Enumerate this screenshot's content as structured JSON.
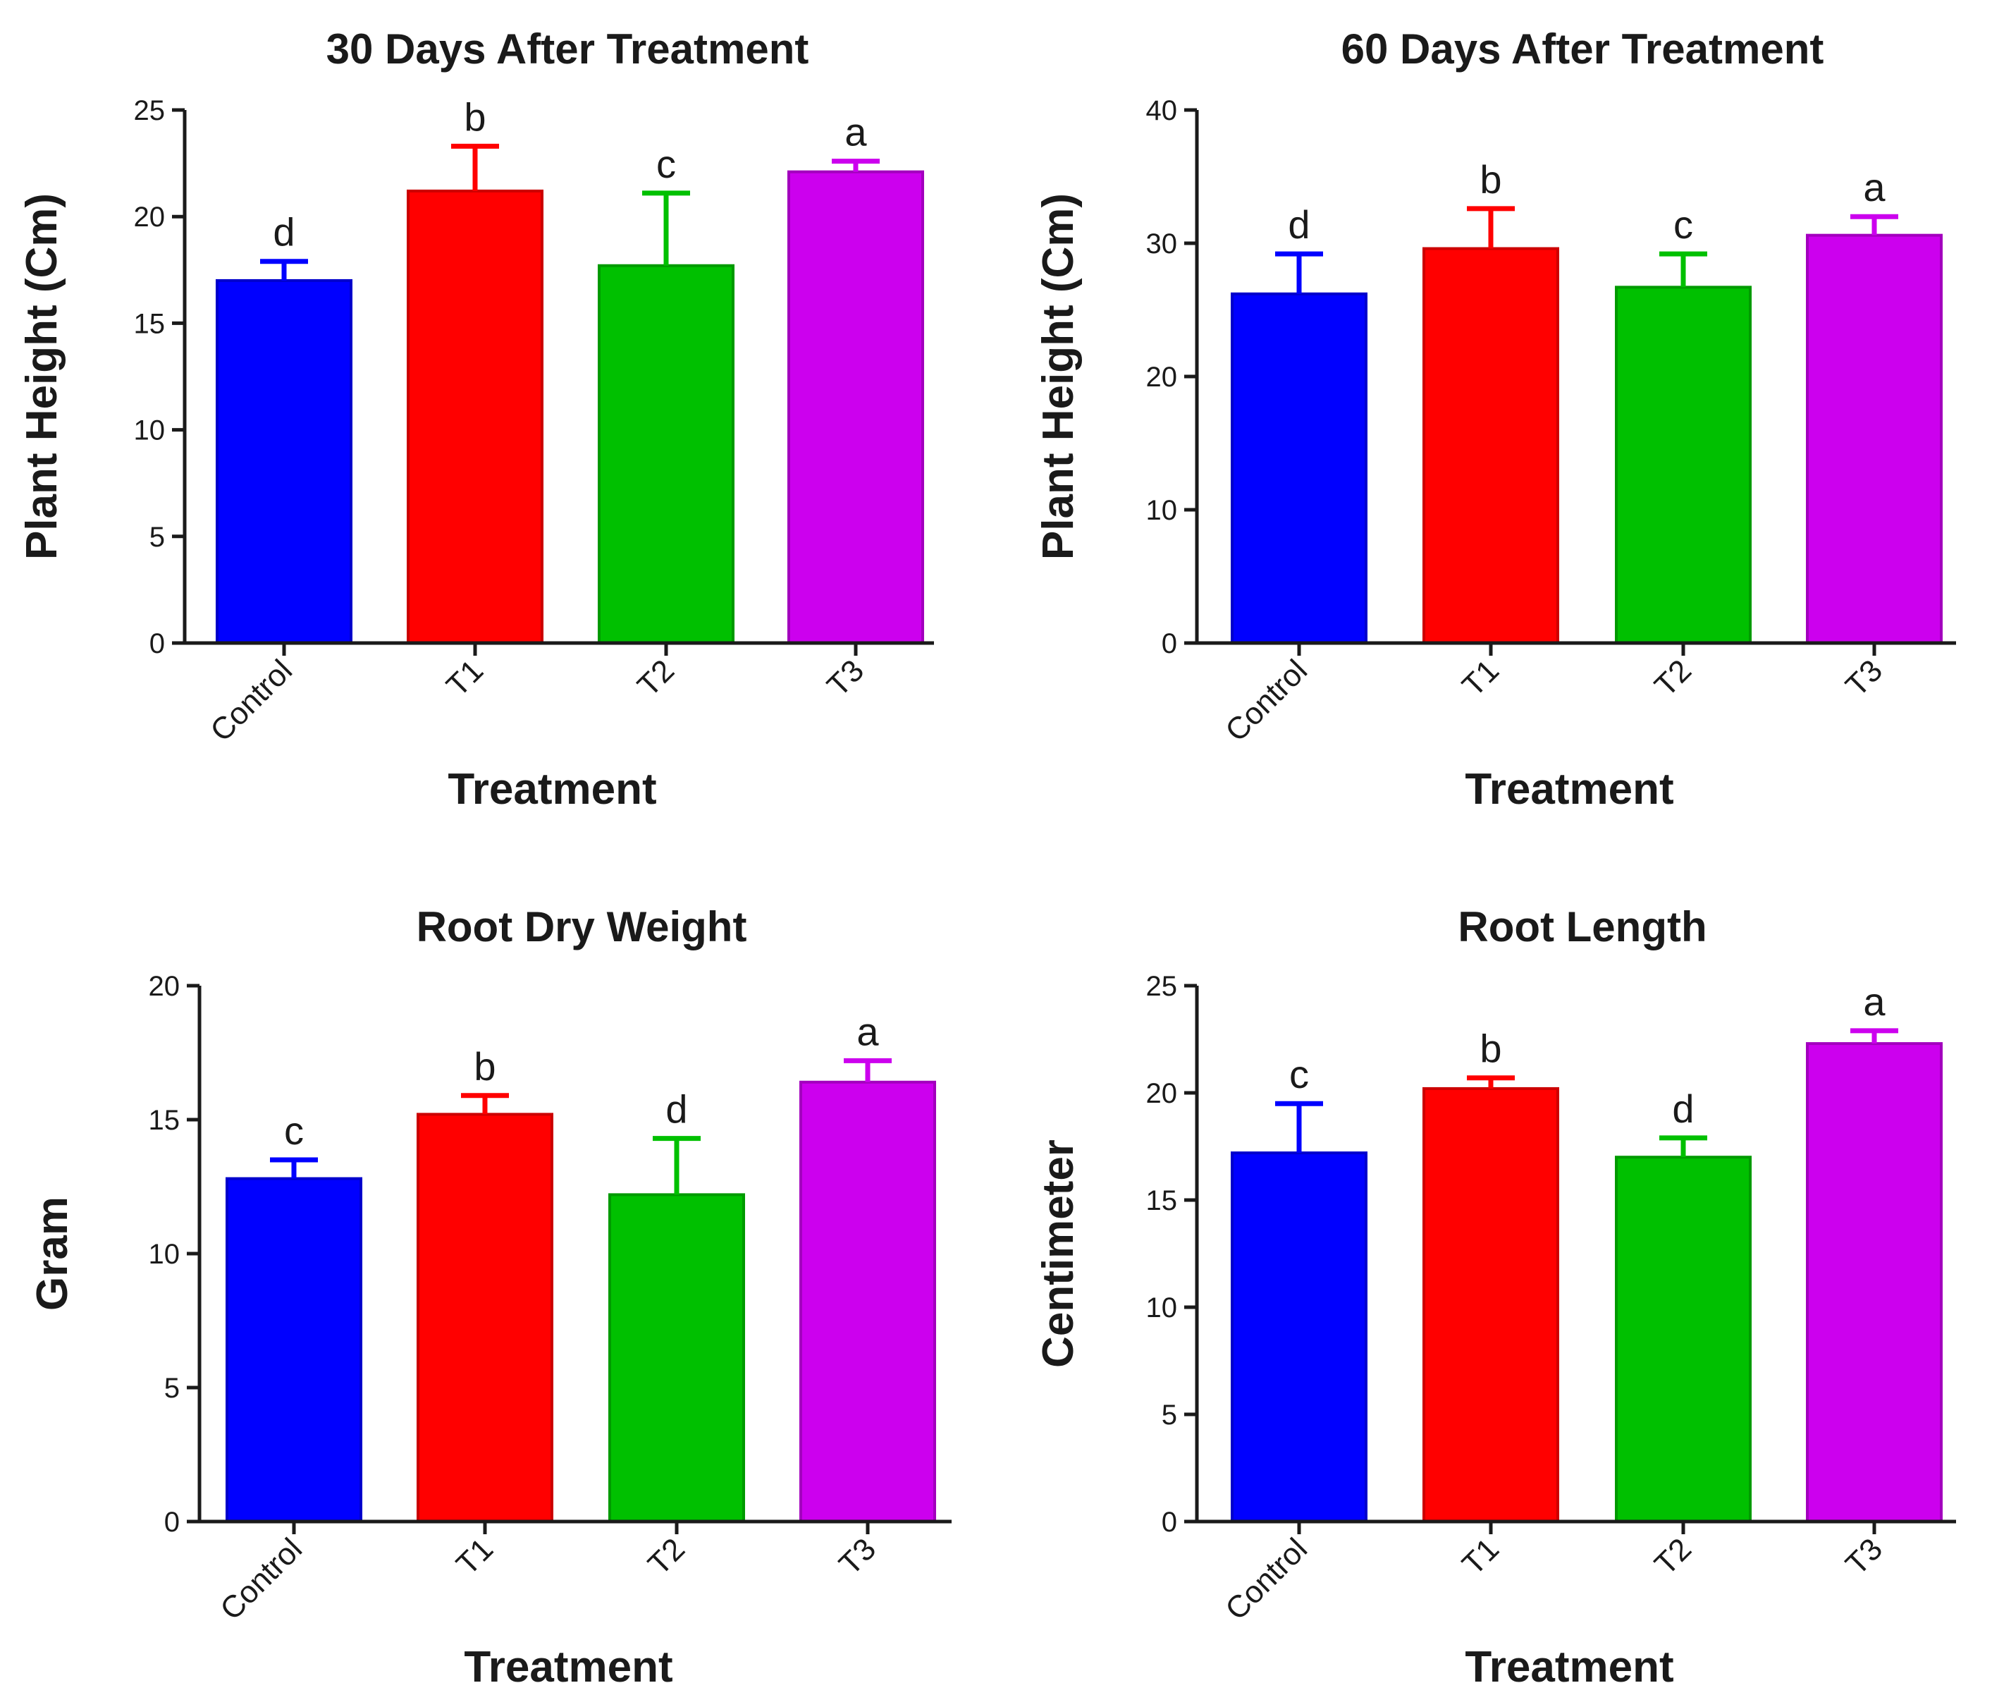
{
  "chart_data": [
    {
      "type": "bar",
      "title": "30 Days After Treatment",
      "xlabel": "Treatment",
      "ylabel": "Plant Height (Cm)",
      "categories": [
        "Control",
        "T1",
        "T2",
        "T3"
      ],
      "values": [
        17.0,
        21.2,
        17.7,
        22.1
      ],
      "errors": [
        0.9,
        2.1,
        3.4,
        0.5
      ],
      "significance": [
        "d",
        "b",
        "c",
        "a"
      ],
      "colors": [
        "#0000ff",
        "#ff0000",
        "#00c000",
        "#cc00ee"
      ],
      "ylim": [
        0,
        25
      ],
      "yticks": [
        0,
        5,
        10,
        15,
        20,
        25
      ]
    },
    {
      "type": "bar",
      "title": "60 Days After Treatment",
      "xlabel": "Treatment",
      "ylabel": "Plant Height (Cm)",
      "categories": [
        "Control",
        "T1",
        "T2",
        "T3"
      ],
      "values": [
        26.2,
        29.6,
        26.7,
        30.6
      ],
      "errors": [
        3.0,
        3.0,
        2.5,
        1.4
      ],
      "significance": [
        "d",
        "b",
        "c",
        "a"
      ],
      "colors": [
        "#0000ff",
        "#ff0000",
        "#00c000",
        "#cc00ee"
      ],
      "ylim": [
        0,
        40
      ],
      "yticks": [
        0,
        10,
        20,
        30,
        40
      ]
    },
    {
      "type": "bar",
      "title": "Root Dry Weight",
      "xlabel": "Treatment",
      "ylabel": "Gram",
      "categories": [
        "Control",
        "T1",
        "T2",
        "T3"
      ],
      "values": [
        12.8,
        15.2,
        12.2,
        16.4
      ],
      "errors": [
        0.7,
        0.7,
        2.1,
        0.8
      ],
      "significance": [
        "c",
        "b",
        "d",
        "a"
      ],
      "colors": [
        "#0000ff",
        "#ff0000",
        "#00c000",
        "#cc00ee"
      ],
      "ylim": [
        0,
        20
      ],
      "yticks": [
        0,
        5,
        10,
        15,
        20
      ]
    },
    {
      "type": "bar",
      "title": "Root Length",
      "xlabel": "Treatment",
      "ylabel": "Centimeter",
      "categories": [
        "Control",
        "T1",
        "T2",
        "T3"
      ],
      "values": [
        17.2,
        20.2,
        17.0,
        22.3
      ],
      "errors": [
        2.3,
        0.5,
        0.9,
        0.6
      ],
      "significance": [
        "c",
        "b",
        "d",
        "a"
      ],
      "colors": [
        "#0000ff",
        "#ff0000",
        "#00c000",
        "#cc00ee"
      ],
      "ylim": [
        0,
        25
      ],
      "yticks": [
        0,
        5,
        10,
        15,
        20,
        25
      ]
    }
  ]
}
